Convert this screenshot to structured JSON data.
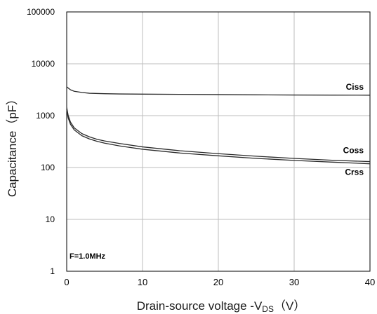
{
  "chart_data": {
    "type": "line",
    "title": "",
    "xlabel": "Drain-source voltage -V",
    "xlabel_sub": "DS",
    "xlabel_unit": "（V）",
    "ylabel": "Capacitance（pF）",
    "xlim": [
      0,
      40
    ],
    "ylim": [
      1,
      100000
    ],
    "yscale": "log",
    "grid": true,
    "x_ticks": [
      0,
      10,
      20,
      30,
      40
    ],
    "x_tick_labels": [
      "0",
      "10",
      "20",
      "30",
      "40"
    ],
    "y_ticks": [
      1,
      10,
      100,
      1000,
      10000,
      100000
    ],
    "y_tick_labels": [
      "1",
      "10",
      "100",
      "1000",
      "10000",
      "100000"
    ],
    "annotation": "F=1.0MHz",
    "series": [
      {
        "name": "Ciss",
        "x": [
          0,
          0.5,
          1,
          2,
          3,
          5,
          7,
          10,
          15,
          20,
          25,
          30,
          35,
          40
        ],
        "y": [
          3600,
          3150,
          2950,
          2800,
          2700,
          2650,
          2620,
          2600,
          2570,
          2550,
          2520,
          2500,
          2490,
          2480
        ]
      },
      {
        "name": "Coss",
        "x": [
          0,
          0.2,
          0.5,
          1,
          2,
          3,
          4,
          5,
          7,
          10,
          15,
          20,
          25,
          30,
          35,
          40
        ],
        "y": [
          1450,
          1000,
          750,
          580,
          450,
          390,
          350,
          325,
          290,
          250,
          210,
          185,
          165,
          150,
          138,
          130
        ]
      },
      {
        "name": "Crss",
        "x": [
          0,
          0.2,
          0.5,
          1,
          2,
          3,
          4,
          5,
          7,
          10,
          15,
          20,
          25,
          30,
          35,
          40
        ],
        "y": [
          1300,
          900,
          680,
          530,
          410,
          355,
          320,
          295,
          260,
          225,
          190,
          168,
          150,
          137,
          127,
          118
        ]
      }
    ]
  }
}
